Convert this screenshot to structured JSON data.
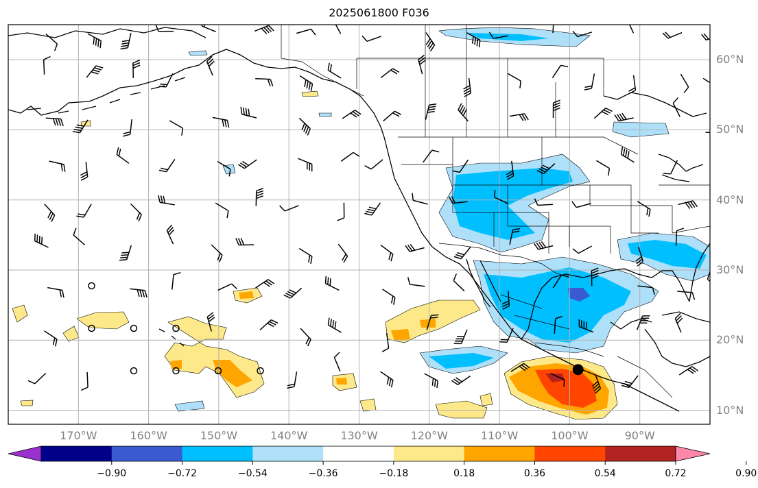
{
  "title": "2025061800 F036",
  "lat_labels": [
    {
      "lat": 60,
      "text": "60°N"
    },
    {
      "lat": 50,
      "text": "50°N"
    },
    {
      "lat": 40,
      "text": "40°N"
    },
    {
      "lat": 30,
      "text": "30°N"
    },
    {
      "lat": 20,
      "text": "20°N"
    },
    {
      "lat": 10,
      "text": "10°N"
    }
  ],
  "lon_labels": [
    {
      "lon": -170,
      "text": "170°W"
    },
    {
      "lon": -160,
      "text": "160°W"
    },
    {
      "lon": -150,
      "text": "150°W"
    },
    {
      "lon": -140,
      "text": "140°W"
    },
    {
      "lon": -130,
      "text": "130°W"
    },
    {
      "lon": -120,
      "text": "120°W"
    },
    {
      "lon": -110,
      "text": "110°W"
    },
    {
      "lon": -100,
      "text": "100°W"
    },
    {
      "lon": -90,
      "text": "90°W"
    }
  ],
  "extent": {
    "lon_min": -180,
    "lon_max": -80,
    "lat_min": 8,
    "lat_max": 65
  },
  "colorbar": {
    "levels": [
      -0.9,
      -0.72,
      -0.54,
      -0.36,
      -0.18,
      0.18,
      0.36,
      0.54,
      0.72,
      0.9
    ],
    "tick_labels": [
      "−0.90",
      "−0.72",
      "−0.54",
      "−0.36",
      "−0.18",
      "0.18",
      "0.36",
      "0.54",
      "0.72",
      "0.90"
    ],
    "colors": [
      "#9b30d0",
      "#00008b",
      "#3a5bcf",
      "#00bfff",
      "#aee0fa",
      "#ffffff",
      "#fde98a",
      "#ffa500",
      "#ff4500",
      "#b22222",
      "#ff88aa"
    ]
  },
  "marker": {
    "lon": -98.8,
    "lat": 15.8
  }
}
